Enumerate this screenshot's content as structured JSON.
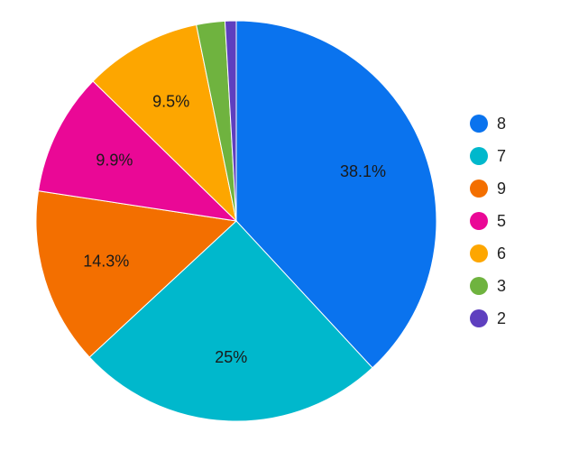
{
  "chart_data": {
    "type": "pie",
    "title": "",
    "legend_position": "right",
    "start_angle_deg": 0,
    "direction": "clockwise",
    "slices": [
      {
        "label": "8",
        "value": 38.1,
        "display": "38.1%",
        "color": "#0a73ee"
      },
      {
        "label": "7",
        "value": 25.0,
        "display": "25%",
        "color": "#00b8cc"
      },
      {
        "label": "9",
        "value": 14.3,
        "display": "14.3%",
        "color": "#f36f00"
      },
      {
        "label": "5",
        "value": 9.9,
        "display": "9.9%",
        "color": "#ea0896"
      },
      {
        "label": "6",
        "value": 9.5,
        "display": "9.5%",
        "color": "#fda600"
      },
      {
        "label": "3",
        "value": 2.3,
        "display": "",
        "color": "#6fb33f"
      },
      {
        "label": "2",
        "value": 0.9,
        "display": "",
        "color": "#5e3fbf"
      }
    ]
  }
}
